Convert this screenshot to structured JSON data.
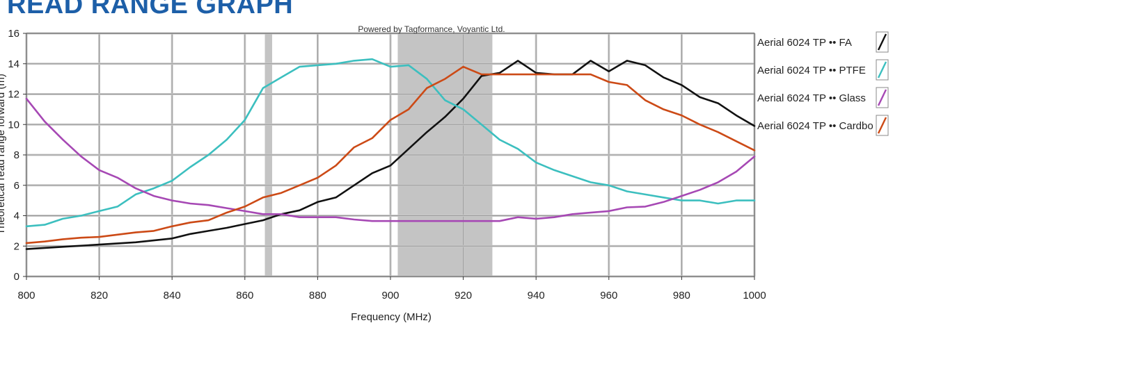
{
  "page": {
    "title": "READ RANGE GRAPH"
  },
  "chart_data": {
    "type": "line",
    "credit": "Powered by Tagformance, Voyantic Ltd.",
    "xlabel": "Frequency (MHz)",
    "ylabel": "Theoretical read range forward (m)",
    "xlim": [
      800,
      1000
    ],
    "ylim": [
      0,
      16
    ],
    "x_ticks": [
      800,
      820,
      840,
      860,
      880,
      900,
      920,
      940,
      960,
      980,
      1000
    ],
    "y_ticks": [
      0,
      2,
      4,
      6,
      8,
      10,
      12,
      14,
      16
    ],
    "grid": true,
    "legend_position": "right",
    "shaded_bands": [
      {
        "x_start": 865.5,
        "x_end": 867.5
      },
      {
        "x_start": 902,
        "x_end": 928
      }
    ],
    "series": [
      {
        "name": "Aerial 6024 TP •• FA",
        "color": "#111111",
        "x": [
          800,
          810,
          820,
          830,
          840,
          845,
          850,
          855,
          860,
          865,
          870,
          875,
          880,
          885,
          890,
          895,
          900,
          905,
          910,
          915,
          920,
          925,
          930,
          935,
          940,
          945,
          950,
          955,
          960,
          965,
          970,
          975,
          980,
          985,
          990,
          995,
          1000
        ],
        "y": [
          1.8,
          1.95,
          2.1,
          2.25,
          2.5,
          2.8,
          3.0,
          3.2,
          3.45,
          3.7,
          4.1,
          4.35,
          4.9,
          5.2,
          6.0,
          6.8,
          7.3,
          8.4,
          9.5,
          10.5,
          11.7,
          13.2,
          13.4,
          14.2,
          13.4,
          13.3,
          13.3,
          14.2,
          13.5,
          14.2,
          13.9,
          13.1,
          12.6,
          11.8,
          11.4,
          10.6,
          9.9
        ]
      },
      {
        "name": "Aerial 6024 TP •• PTFE",
        "color": "#3cbfbf",
        "x": [
          800,
          805,
          810,
          815,
          820,
          825,
          830,
          835,
          840,
          845,
          850,
          855,
          860,
          865,
          870,
          875,
          880,
          885,
          890,
          895,
          900,
          905,
          910,
          915,
          920,
          925,
          930,
          935,
          940,
          945,
          950,
          955,
          960,
          965,
          970,
          975,
          980,
          985,
          990,
          995,
          1000
        ],
        "y": [
          3.3,
          3.4,
          3.8,
          4.0,
          4.3,
          4.6,
          5.4,
          5.8,
          6.3,
          7.2,
          8.0,
          9.0,
          10.3,
          12.4,
          13.1,
          13.8,
          13.9,
          14.0,
          14.2,
          14.3,
          13.8,
          13.9,
          13.0,
          11.6,
          11.0,
          10.0,
          9.0,
          8.4,
          7.5,
          7.0,
          6.6,
          6.2,
          6.0,
          5.6,
          5.4,
          5.2,
          5.0,
          5.0,
          4.8,
          5.0,
          5.0
        ]
      },
      {
        "name": "Aerial 6024 TP •• Glass",
        "color": "#a648b4",
        "x": [
          800,
          805,
          810,
          815,
          820,
          825,
          830,
          835,
          840,
          845,
          850,
          855,
          860,
          865,
          870,
          875,
          880,
          885,
          890,
          895,
          900,
          905,
          910,
          915,
          920,
          925,
          930,
          935,
          940,
          945,
          950,
          955,
          960,
          965,
          970,
          975,
          980,
          985,
          990,
          995,
          1000
        ],
        "y": [
          11.7,
          10.2,
          9.0,
          7.9,
          7.0,
          6.5,
          5.8,
          5.3,
          5.0,
          4.8,
          4.7,
          4.5,
          4.3,
          4.1,
          4.1,
          3.9,
          3.9,
          3.9,
          3.75,
          3.65,
          3.65,
          3.65,
          3.65,
          3.65,
          3.65,
          3.65,
          3.65,
          3.9,
          3.8,
          3.9,
          4.1,
          4.2,
          4.3,
          4.55,
          4.6,
          4.9,
          5.3,
          5.7,
          6.2,
          6.9,
          7.9
        ]
      },
      {
        "name": "Aerial 6024 TP •• Cardbo",
        "color": "#cc4a16",
        "x": [
          800,
          805,
          810,
          815,
          820,
          825,
          830,
          835,
          840,
          845,
          850,
          855,
          860,
          865,
          870,
          875,
          880,
          885,
          890,
          895,
          900,
          905,
          910,
          915,
          920,
          925,
          930,
          935,
          940,
          945,
          950,
          955,
          960,
          965,
          970,
          975,
          980,
          985,
          990,
          995,
          1000
        ],
        "y": [
          2.2,
          2.3,
          2.45,
          2.55,
          2.6,
          2.75,
          2.9,
          3.0,
          3.3,
          3.55,
          3.7,
          4.2,
          4.6,
          5.2,
          5.5,
          6.0,
          6.5,
          7.3,
          8.5,
          9.1,
          10.3,
          11.0,
          12.4,
          13.0,
          13.8,
          13.3,
          13.3,
          13.3,
          13.3,
          13.3,
          13.3,
          13.3,
          12.8,
          12.6,
          11.6,
          11.0,
          10.6,
          10.0,
          9.5,
          8.9,
          8.3
        ]
      }
    ]
  }
}
